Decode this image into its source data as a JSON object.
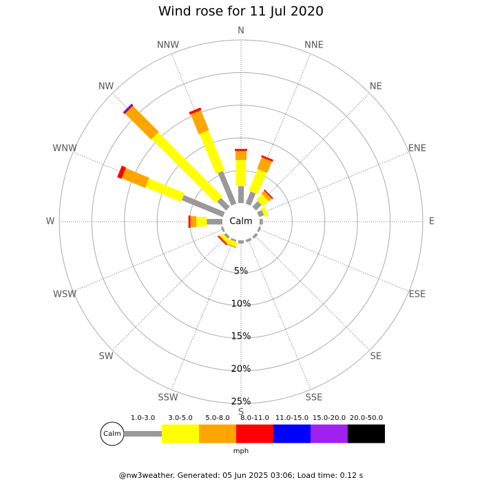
{
  "chart_data": {
    "type": "wind_rose",
    "title": "Wind rose for 11 Jul 2020",
    "directions": [
      "N",
      "NNE",
      "NE",
      "ENE",
      "E",
      "ESE",
      "SE",
      "SSE",
      "S",
      "SSW",
      "SW",
      "WSW",
      "W",
      "WNW",
      "NW",
      "NNW"
    ],
    "series": [
      {
        "name": "1.0-3.0",
        "color": "#999999",
        "values": [
          2.6,
          2.0,
          1.2,
          0.8,
          0.5,
          0.3,
          0.4,
          0.4,
          0.5,
          0.3,
          0.4,
          0.3,
          2.4,
          6.8,
          1.9,
          5.4
        ]
      },
      {
        "name": "3.0-5.0",
        "color": "#ffff00",
        "values": [
          4.0,
          3.6,
          1.2,
          0.6,
          0,
          0,
          0,
          0,
          0,
          0.7,
          0.5,
          0,
          1.6,
          5.9,
          13.9,
          6.6
        ]
      },
      {
        "name": "5.0-8.0",
        "color": "#ffa500",
        "values": [
          1.4,
          1.9,
          0.6,
          0,
          0,
          0,
          0,
          0,
          0,
          0.2,
          0.2,
          0,
          0.9,
          3.9,
          5.6,
          3.3
        ]
      },
      {
        "name": "8.0-11.0",
        "color": "#ff0000",
        "values": [
          0.3,
          0.3,
          0.2,
          0,
          0,
          0,
          0,
          0,
          0,
          0,
          0.2,
          0,
          0.3,
          0.7,
          0.2,
          0.4
        ]
      },
      {
        "name": "11.0-15.0",
        "color": "#0000ff",
        "values": [
          0,
          0,
          0,
          0,
          0,
          0,
          0,
          0,
          0,
          0,
          0,
          0,
          0,
          0,
          0.1,
          0
        ]
      },
      {
        "name": "15.0-20.0",
        "color": "#a020f0",
        "values": [
          0,
          0,
          0,
          0,
          0,
          0,
          0,
          0,
          0,
          0,
          0,
          0,
          0,
          0,
          0.1,
          0
        ]
      },
      {
        "name": "20.0-50.0",
        "color": "#000000",
        "values": [
          0,
          0,
          0,
          0,
          0,
          0,
          0,
          0,
          0,
          0,
          0,
          0,
          0,
          0,
          0,
          0
        ]
      }
    ],
    "rlim": [
      0,
      25
    ],
    "rticks": [
      {
        "value": 5,
        "label": "5%"
      },
      {
        "value": 10,
        "label": "10%"
      },
      {
        "value": 15,
        "label": "15%"
      },
      {
        "value": 20,
        "label": "20%"
      },
      {
        "value": 25,
        "label": "25%"
      }
    ],
    "calm_label": "Calm",
    "unit": "mph"
  },
  "footer": "@nw3weather. Generated: 05 Jun 2025 03:06; Load time: 0.12 s"
}
